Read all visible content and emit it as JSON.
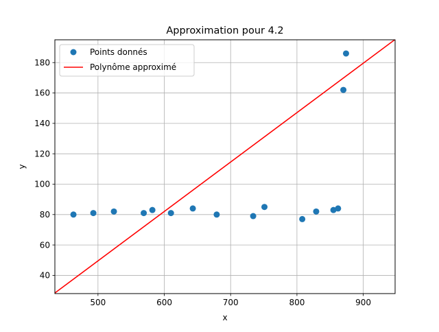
{
  "chart_data": {
    "type": "scatter",
    "title": "Approximation pour 4.2",
    "xlabel": "x",
    "ylabel": "y",
    "xlim": [
      435,
      948
    ],
    "ylim": [
      28,
      195
    ],
    "xticks": [
      500,
      600,
      700,
      800,
      900
    ],
    "yticks": [
      40,
      60,
      80,
      100,
      120,
      140,
      160,
      180
    ],
    "grid": true,
    "legend_position": "top-left",
    "series": [
      {
        "name": "Points donnés",
        "kind": "scatter",
        "color": "#1f77b4",
        "points": [
          {
            "x": 463,
            "y": 80
          },
          {
            "x": 493,
            "y": 81
          },
          {
            "x": 524,
            "y": 82
          },
          {
            "x": 569,
            "y": 81
          },
          {
            "x": 582,
            "y": 83
          },
          {
            "x": 610,
            "y": 81
          },
          {
            "x": 643,
            "y": 84
          },
          {
            "x": 679,
            "y": 80
          },
          {
            "x": 734,
            "y": 79
          },
          {
            "x": 751,
            "y": 85
          },
          {
            "x": 808,
            "y": 77
          },
          {
            "x": 829,
            "y": 82
          },
          {
            "x": 855,
            "y": 83
          },
          {
            "x": 862,
            "y": 84
          },
          {
            "x": 870,
            "y": 162
          },
          {
            "x": 874,
            "y": 186
          }
        ]
      },
      {
        "name": "Polynôme approximé",
        "kind": "line",
        "color": "#ff0000",
        "points": [
          {
            "x": 435,
            "y": 28.4
          },
          {
            "x": 948,
            "y": 195.2
          }
        ]
      }
    ]
  }
}
